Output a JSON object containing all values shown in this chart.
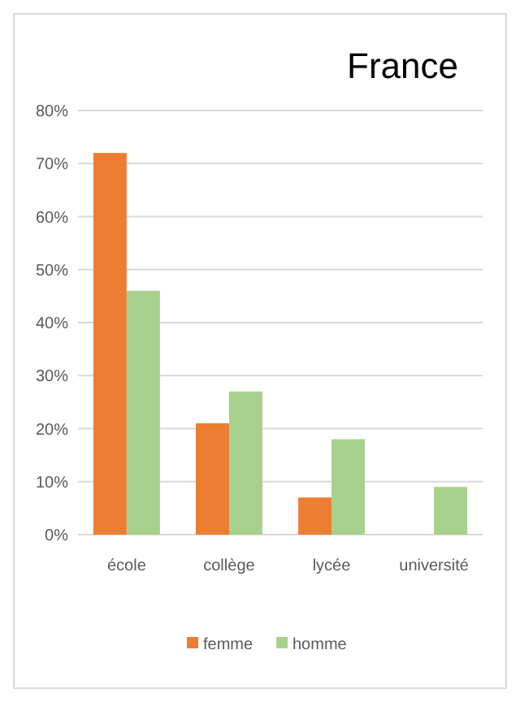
{
  "chart_data": {
    "type": "bar",
    "title": "France",
    "categories": [
      "école",
      "collège",
      "lycée",
      "université"
    ],
    "series": [
      {
        "name": "femme",
        "color": "#ed7d31",
        "values": [
          72,
          21,
          7,
          0
        ]
      },
      {
        "name": "homme",
        "color": "#a9d18e",
        "values": [
          46,
          27,
          18,
          9
        ]
      }
    ],
    "ylim": [
      0,
      80
    ],
    "yticks": [
      {
        "value": 0,
        "label": "0%"
      },
      {
        "value": 10,
        "label": "10%"
      },
      {
        "value": 20,
        "label": "20%"
      },
      {
        "value": 30,
        "label": "30%"
      },
      {
        "value": 40,
        "label": "40%"
      },
      {
        "value": 50,
        "label": "50%"
      },
      {
        "value": 60,
        "label": "60%"
      },
      {
        "value": 70,
        "label": "70%"
      },
      {
        "value": 80,
        "label": "80%"
      }
    ],
    "grid": "y",
    "legend": "bottom"
  }
}
